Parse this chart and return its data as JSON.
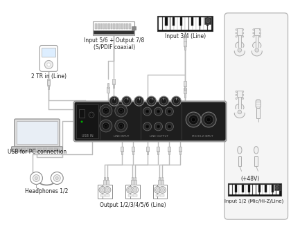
{
  "bg_color": "#ffffff",
  "device_color": "#2a2a2a",
  "line_color": "#aaaaaa",
  "text_color": "#222222",
  "labels": {
    "top_left": "2 TR in (Line)",
    "usb": "USB for PC connection",
    "headphones": "Headphones 1/2",
    "output": "Output 1/2/3/4/5/6 (Line)",
    "spdif": "Input 5/6 + Output 7/8\n(S/PDIF coaxial)",
    "input34": "Input 3/4 (Line)",
    "input12": "Input 1/2 (Mic/Hi-Z/Line)",
    "plus48v": "(+48V)"
  }
}
